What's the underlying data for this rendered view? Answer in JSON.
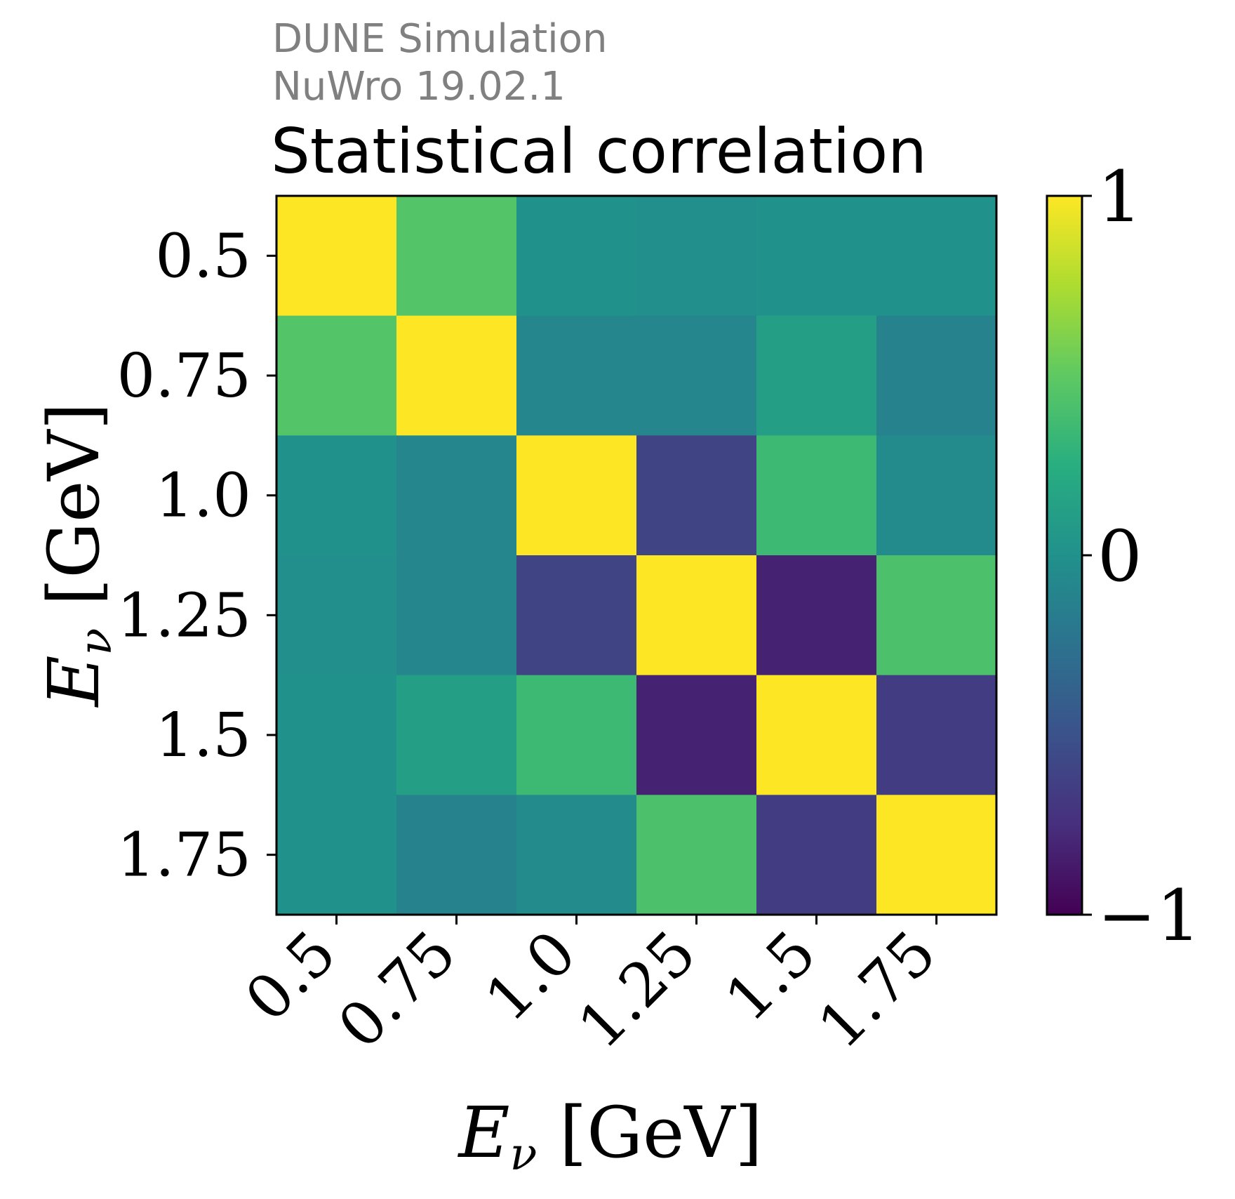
{
  "header": {
    "line1": "DUNE Simulation",
    "line2": "NuWro 19.02.1"
  },
  "chart_data": {
    "type": "heatmap",
    "title": "Statistical correlation",
    "xlabel": "E_ν [GeV]",
    "ylabel": "E_ν [GeV]",
    "x_categories": [
      "0.5",
      "0.75",
      "1.0",
      "1.25",
      "1.5",
      "1.75"
    ],
    "y_categories": [
      "0.5",
      "0.75",
      "1.0",
      "1.25",
      "1.5",
      "1.75"
    ],
    "values": [
      [
        1.0,
        0.45,
        0.0,
        -0.02,
        0.0,
        0.0
      ],
      [
        0.45,
        1.0,
        -0.08,
        -0.08,
        0.12,
        -0.12
      ],
      [
        0.0,
        -0.08,
        1.0,
        -0.6,
        0.35,
        -0.05
      ],
      [
        -0.02,
        -0.08,
        -0.6,
        1.0,
        -0.82,
        0.42
      ],
      [
        0.0,
        0.12,
        0.35,
        -0.82,
        1.0,
        -0.65
      ],
      [
        0.0,
        -0.12,
        -0.05,
        0.42,
        -0.65,
        1.0
      ]
    ],
    "colorbar": {
      "range": [
        -1,
        1
      ],
      "ticks": [
        1,
        0,
        -1
      ],
      "tick_labels": [
        "1",
        "0",
        "−1"
      ],
      "colormap": "viridis"
    }
  }
}
